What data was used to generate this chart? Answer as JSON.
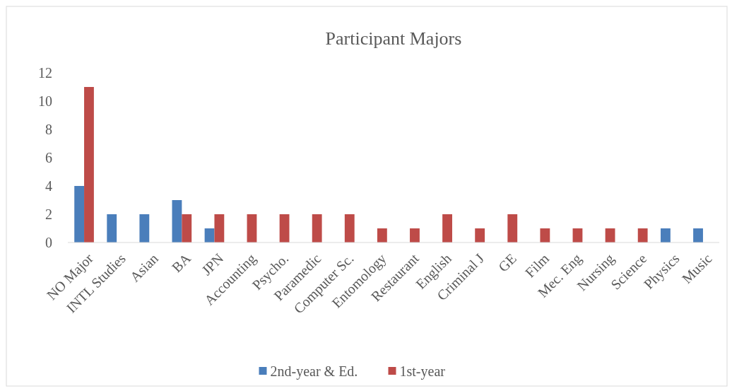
{
  "chart_data": {
    "type": "bar",
    "title": "Participant Majors",
    "categories": [
      "NO Major",
      "INTL Studies",
      "Asian",
      "BA",
      "JPN",
      "Accounting",
      "Psycho.",
      "Paramedic",
      "Computer Sc.",
      "Entomology",
      "Restaurant",
      "English",
      "Criminal J",
      "GE",
      "Film",
      "Mec. Eng",
      "Nursing",
      "Science",
      "Physics",
      "Music"
    ],
    "series": [
      {
        "name": "2nd-year & Ed.",
        "color": "#4a7ebb",
        "values": [
          4,
          2,
          2,
          3,
          1,
          null,
          null,
          null,
          null,
          null,
          null,
          null,
          null,
          null,
          null,
          null,
          null,
          null,
          1,
          1
        ]
      },
      {
        "name": "1st-year",
        "color": "#be4b48",
        "values": [
          11,
          null,
          null,
          2,
          2,
          2,
          2,
          2,
          2,
          1,
          1,
          2,
          1,
          2,
          1,
          1,
          1,
          1,
          null,
          null
        ]
      }
    ],
    "ylim": [
      0,
      12
    ],
    "yticks": [
      0,
      2,
      4,
      6,
      8,
      10,
      12
    ],
    "grid": false,
    "legend": "bottom"
  }
}
